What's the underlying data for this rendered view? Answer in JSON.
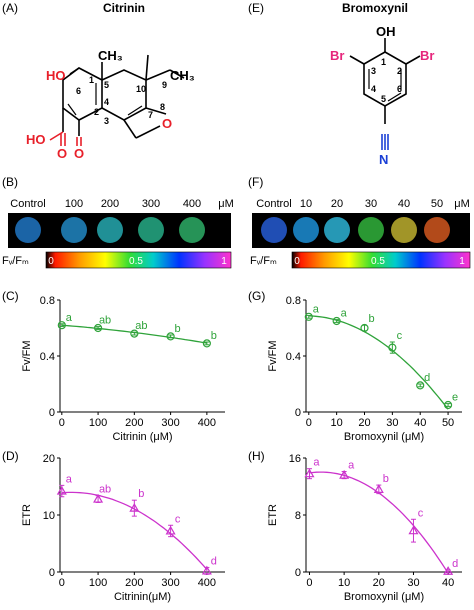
{
  "panels": {
    "A": {
      "label": "(A)",
      "title": "Citrinin",
      "atoms": {
        "ho": "HO",
        "ch3_top": "CH₃",
        "ch3_right": "CH₃",
        "ho_acid": "HO",
        "o_acid": "O",
        "o_ring": "O",
        "o_keto": "O"
      },
      "numbers": [
        "1",
        "2",
        "3",
        "4",
        "5",
        "6",
        "7",
        "8",
        "9",
        "10"
      ]
    },
    "E": {
      "label": "(E)",
      "title": "Bromoxynil",
      "atoms": {
        "oh": "OH",
        "br_left": "Br",
        "br_right": "Br",
        "n": "N"
      },
      "numbers": [
        "1",
        "2",
        "3",
        "4",
        "5",
        "6"
      ]
    },
    "B": {
      "label": "(B)",
      "control": "Control",
      "concs": [
        "100",
        "200",
        "300",
        "400"
      ],
      "unit": "μM",
      "well_colors": [
        "#1e6fb8",
        "#1f7fb8",
        "#23a0a6",
        "#24a27e",
        "#2aa360"
      ]
    },
    "F": {
      "label": "(F)",
      "control": "Control",
      "concs": [
        "10",
        "20",
        "30",
        "40",
        "50"
      ],
      "unit": "μM",
      "well_colors": [
        "#2457c8",
        "#1b86c9",
        "#2aa8c9",
        "#2fa838",
        "#b3a52c",
        "#c5521d"
      ]
    },
    "colorbar": {
      "label": "Fᵥ/Fₘ",
      "ticks": [
        "0",
        "0.5",
        "1"
      ]
    },
    "C": {
      "label": "(C)"
    },
    "D": {
      "label": "(D)"
    },
    "G": {
      "label": "(G)"
    },
    "H": {
      "label": "(H)"
    }
  },
  "colors": {
    "green": "#2fa33a",
    "magenta": "#cc33cc",
    "red": "#e8202a",
    "pink": "#e6267c",
    "blue": "#1a3fd6"
  },
  "chart_data": [
    {
      "panel": "C",
      "type": "scatter",
      "xlabel": "Citrinin (μM)",
      "ylabel": "Fv/FM",
      "x": [
        0,
        100,
        200,
        300,
        400
      ],
      "y": [
        0.62,
        0.6,
        0.56,
        0.54,
        0.49
      ],
      "err": [
        0.01,
        0.01,
        0.01,
        0.01,
        0.01
      ],
      "letters": [
        "a",
        "ab",
        "ab",
        "b",
        "b"
      ],
      "xlim": [
        -5,
        450
      ],
      "ylim": [
        0,
        0.8
      ],
      "xticks": [
        0,
        100,
        200,
        300,
        400
      ],
      "yticks": [
        0,
        0.4,
        0.8
      ]
    },
    {
      "panel": "D",
      "type": "scatter",
      "xlabel": "Citrinin(μM)",
      "ylabel": "ETR",
      "x": [
        0,
        100,
        200,
        300,
        400
      ],
      "y": [
        14.2,
        12.8,
        11.2,
        7.2,
        0.2
      ],
      "err": [
        1.0,
        0.6,
        1.4,
        1.0,
        0.6
      ],
      "letters": [
        "a",
        "ab",
        "b",
        "c",
        "d"
      ],
      "xlim": [
        -5,
        450
      ],
      "ylim": [
        0,
        20
      ],
      "xticks": [
        0,
        100,
        200,
        300,
        400
      ],
      "yticks": [
        0,
        10,
        20
      ]
    },
    {
      "panel": "G",
      "type": "scatter",
      "xlabel": "Bromoxynil (μM)",
      "ylabel": "Fv/FM",
      "x": [
        0,
        10,
        20,
        30,
        40,
        50
      ],
      "y": [
        0.68,
        0.65,
        0.6,
        0.46,
        0.19,
        0.05
      ],
      "err": [
        0.01,
        0.01,
        0.02,
        0.04,
        0.01,
        0.01
      ],
      "letters": [
        "a",
        "a",
        "b",
        "c",
        "d",
        "e"
      ],
      "xlim": [
        -1,
        55
      ],
      "ylim": [
        0,
        0.8
      ],
      "xticks": [
        0,
        10,
        20,
        30,
        40,
        50
      ],
      "yticks": [
        0,
        0.4,
        0.8
      ]
    },
    {
      "panel": "H",
      "type": "scatter",
      "xlabel": "Bromoxynil (μM)",
      "ylabel": "ETR",
      "x": [
        0,
        10,
        20,
        30,
        40
      ],
      "y": [
        13.8,
        13.6,
        11.6,
        5.8,
        0.1
      ],
      "err": [
        0.7,
        0.5,
        0.6,
        1.6,
        0.2
      ],
      "letters": [
        "a",
        "a",
        "b",
        "c",
        "d"
      ],
      "xlim": [
        -1,
        44
      ],
      "ylim": [
        0,
        16
      ],
      "xticks": [
        0,
        10,
        20,
        30,
        40
      ],
      "yticks": [
        0,
        8,
        16
      ]
    }
  ]
}
